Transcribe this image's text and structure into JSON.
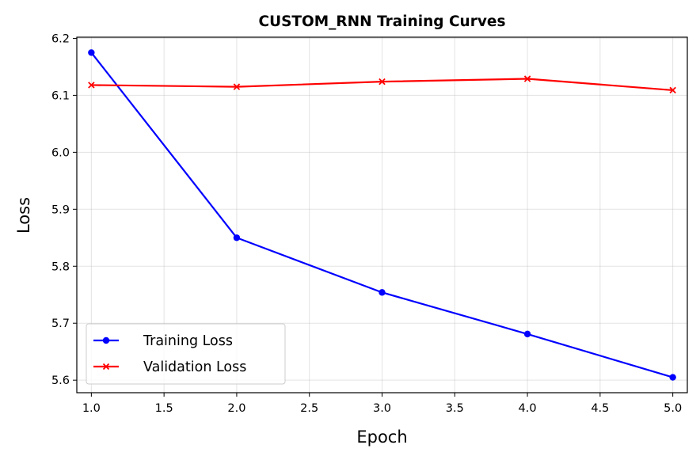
{
  "chart_data": {
    "type": "line",
    "title": "CUSTOM_RNN Training Curves",
    "xlabel": "Epoch",
    "ylabel": "Loss",
    "xlim": [
      0.9,
      5.1
    ],
    "ylim": [
      5.578,
      6.202
    ],
    "xticks": [
      "1.0",
      "1.5",
      "2.0",
      "2.5",
      "3.0",
      "3.5",
      "4.0",
      "4.5",
      "5.0"
    ],
    "yticks": [
      "5.6",
      "5.7",
      "5.8",
      "5.9",
      "6.0",
      "6.1",
      "6.2"
    ],
    "grid": true,
    "legend_position": "lower-left",
    "x": [
      1,
      2,
      3,
      4,
      5
    ],
    "series": [
      {
        "name": "Training Loss",
        "values": [
          6.175,
          5.85,
          5.754,
          5.681,
          5.605
        ],
        "color": "#0000ff",
        "marker": "circle"
      },
      {
        "name": "Validation Loss",
        "values": [
          6.118,
          6.115,
          6.124,
          6.129,
          6.109
        ],
        "color": "#ff0000",
        "marker": "x"
      }
    ]
  }
}
